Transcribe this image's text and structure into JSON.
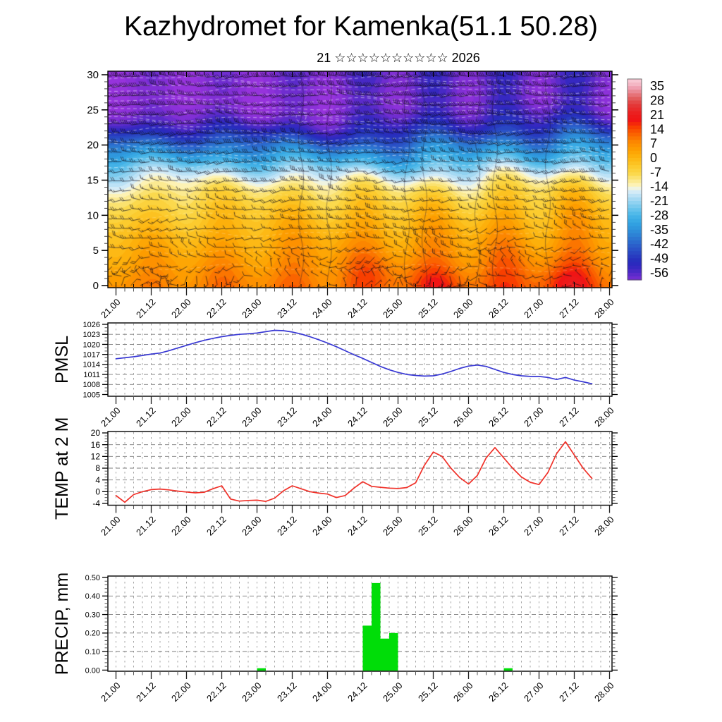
{
  "header": {
    "title": "Kazhydromet for Kamenka(51.1 50.28)",
    "subtitle": "21 ☆☆☆☆☆☆☆☆☆☆ 2026"
  },
  "time_axis": {
    "tick_labels": [
      "21.00",
      "21.12",
      "22.00",
      "22.12",
      "23.00",
      "23.12",
      "24.00",
      "24.12",
      "25.00",
      "25.12",
      "26.00",
      "26.12",
      "27.00",
      "27.12",
      "28.00"
    ],
    "minor_tick_hours": 3,
    "major_tick_hours": 12,
    "span_hours": 168
  },
  "chart_data": [
    {
      "id": "cross_section",
      "type": "heatmap",
      "title": "temperature time-height cross-section with wind barbs",
      "ylim": [
        0,
        30
      ],
      "y_ticks": [
        0,
        5,
        10,
        15,
        20,
        25,
        30
      ],
      "x_tick_labels": [
        "21.00",
        "21.12",
        "22.00",
        "22.12",
        "23.00",
        "23.12",
        "24.00",
        "24.12",
        "25.00",
        "25.12",
        "26.00",
        "26.12",
        "27.00",
        "27.12",
        "28.00"
      ],
      "colorbar": {
        "tick_labels": [
          "35",
          "28",
          "21",
          "14",
          "7",
          "0",
          "-7",
          "-14",
          "-21",
          "-28",
          "-35",
          "-42",
          "-49",
          "-56"
        ],
        "top_value": 38.5,
        "bottom_value": -59.5
      },
      "palette_stops": [
        [
          38,
          "#f8c6d2"
        ],
        [
          35,
          "#ef9fb0"
        ],
        [
          30,
          "#e25f5f"
        ],
        [
          27,
          "#e33b3b"
        ],
        [
          22,
          "#ec1b1b"
        ],
        [
          19,
          "#f01414"
        ],
        [
          16,
          "#f83c00"
        ],
        [
          13,
          "#fa5d00"
        ],
        [
          9,
          "#fc8400"
        ],
        [
          5,
          "#fd9e00"
        ],
        [
          1,
          "#fdb40e"
        ],
        [
          -3,
          "#fcc929"
        ],
        [
          -7,
          "#fbd94d"
        ],
        [
          -10,
          "#fbe887"
        ],
        [
          -13,
          "#fdf5c3"
        ],
        [
          -14.5,
          "#e8f3f2"
        ],
        [
          -16,
          "#cfe9f8"
        ],
        [
          -19,
          "#a8daf3"
        ],
        [
          -23,
          "#77c9ee"
        ],
        [
          -27,
          "#48b6e8"
        ],
        [
          -31,
          "#31a3e2"
        ],
        [
          -35,
          "#2e8dd9"
        ],
        [
          -39,
          "#2c73d0"
        ],
        [
          -43,
          "#2a57c8"
        ],
        [
          -47,
          "#283dc0"
        ],
        [
          -50,
          "#262abc"
        ],
        [
          -53,
          "#3928c2"
        ],
        [
          -56,
          "#5b2bca"
        ],
        [
          -59,
          "#7e2ed4"
        ],
        [
          -63,
          "#9633dc"
        ]
      ],
      "vertical_profile": {
        "level": [
          0,
          2,
          4,
          6,
          8,
          10,
          12,
          13,
          14,
          15,
          16,
          17,
          18,
          19,
          20,
          21,
          22,
          23,
          24,
          25,
          26,
          27,
          28,
          29,
          30
        ],
        "temp_offset_from_surface": [
          0,
          -2,
          -4.5,
          -7,
          -9.5,
          -12,
          -15.5,
          -17.5,
          -20.5,
          -24,
          -28.5,
          -34,
          -39.5,
          -44.5,
          -49.5,
          -55,
          -60.5,
          -64.5,
          -67.5,
          -69.5,
          -70.5,
          -70.5,
          -70,
          -69.5,
          -69
        ]
      },
      "surface_diurnal": {
        "base": 8.5,
        "trend_over_span": 6,
        "amplitude_start": 2.2,
        "amplitude_end": 4.5,
        "peak_at_label_hour": 12
      },
      "warm_pockets_hours": [
        87,
        110,
        152
      ],
      "overlay": "dense black wind barbs, nearly zonal aloft, variable near surface; faint white dashed contours"
    },
    {
      "id": "pmsl",
      "type": "line",
      "ylabel": "PMSL",
      "color": "#3838d4",
      "ylim": [
        1004.5,
        1026.5
      ],
      "y_ticks": [
        1005,
        1008,
        1011,
        1014,
        1017,
        1020,
        1023,
        1026
      ],
      "hours_start": 0,
      "hours_step": 3,
      "values": [
        1015.7,
        1016.0,
        1016.3,
        1016.7,
        1017.1,
        1017.4,
        1018.1,
        1018.9,
        1019.7,
        1020.5,
        1021.2,
        1021.8,
        1022.3,
        1022.7,
        1023.0,
        1023.2,
        1023.4,
        1023.8,
        1024.2,
        1024.1,
        1023.7,
        1023.1,
        1022.3,
        1021.4,
        1020.4,
        1019.3,
        1018.1,
        1016.9,
        1015.8,
        1014.6,
        1013.4,
        1012.4,
        1011.6,
        1011.0,
        1010.7,
        1010.5,
        1010.6,
        1011.1,
        1011.9,
        1012.8,
        1013.5,
        1013.8,
        1013.4,
        1012.5,
        1011.6,
        1011.0,
        1010.6,
        1010.4,
        1010.4,
        1010.1,
        1009.5,
        1010.1,
        1009.3,
        1008.8,
        1008.2
      ]
    },
    {
      "id": "temp2m",
      "type": "line",
      "ylabel": "TEMP at 2 M",
      "color": "#f03028",
      "ylim": [
        -4.6,
        20.5
      ],
      "y_ticks": [
        -4,
        0,
        4,
        8,
        12,
        16,
        20
      ],
      "hours_start": 0,
      "hours_step": 3,
      "values": [
        -1.3,
        -3.6,
        -1.0,
        0.0,
        0.7,
        0.9,
        0.6,
        0.2,
        -0.1,
        -0.4,
        -0.2,
        1.0,
        2.0,
        -2.5,
        -3.2,
        -3.0,
        -2.9,
        -3.3,
        -2.2,
        0.3,
        2.0,
        1.0,
        0.0,
        -0.5,
        -0.8,
        -2.0,
        -1.3,
        1.2,
        3.4,
        1.8,
        1.5,
        1.2,
        1.1,
        1.4,
        3.0,
        9.0,
        13.5,
        12.0,
        8.0,
        4.8,
        2.6,
        5.5,
        11.5,
        15.0,
        11.5,
        8.0,
        5.0,
        3.2,
        2.4,
        6.5,
        13.0,
        17.0,
        12.5,
        8.0,
        4.5
      ]
    },
    {
      "id": "precip",
      "type": "bar",
      "ylabel": "PRECIP, mm",
      "color": "#00dd08",
      "ylim": [
        0,
        0.5
      ],
      "y_ticks": [
        0,
        0.1,
        0.2,
        0.3,
        0.4,
        0.5
      ],
      "bar_width_hours": 3,
      "bars": [
        {
          "start_hour": 48,
          "value": 0.01
        },
        {
          "start_hour": 84,
          "value": 0.24
        },
        {
          "start_hour": 87,
          "value": 0.47
        },
        {
          "start_hour": 90,
          "value": 0.17
        },
        {
          "start_hour": 93,
          "value": 0.2
        },
        {
          "start_hour": 132,
          "value": 0.01
        }
      ]
    }
  ]
}
